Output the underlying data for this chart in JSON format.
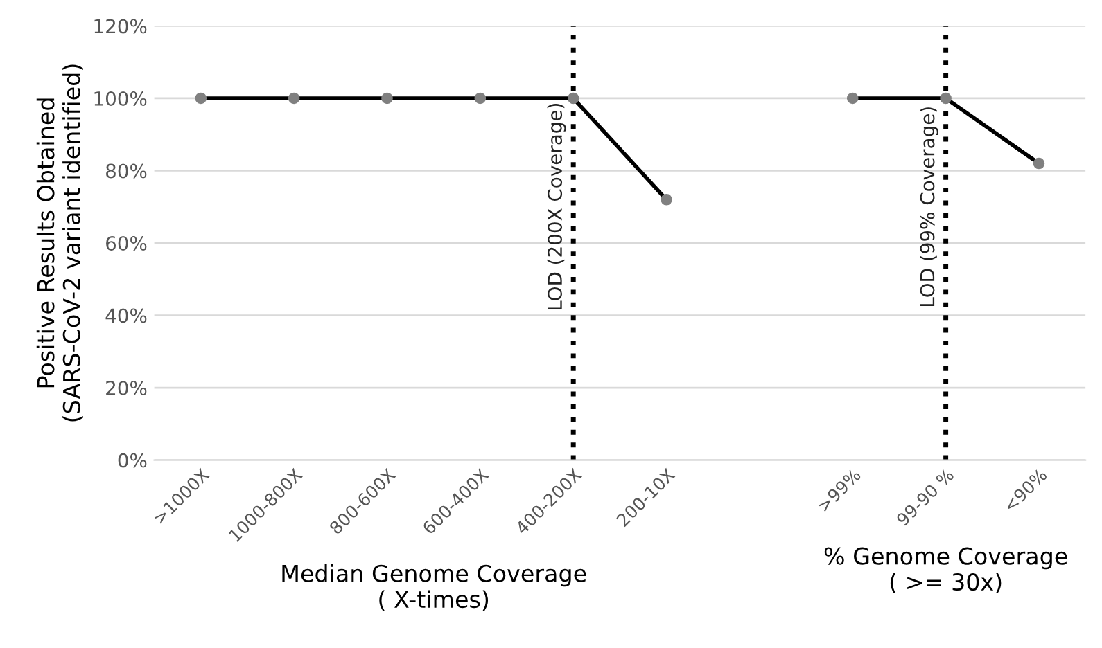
{
  "chart_data": {
    "type": "line",
    "xlabel": "Median Genome Coverage\n( X-times)",
    "ylabel": "Positive Results Obtained\n(SARS-CoV-2 variant identified)",
    "categories": [
      ">1000X",
      "1000-800X",
      "800-600X",
      "600-400X",
      "400-200X",
      "200-10X",
      null,
      ">99%",
      "99-90 %",
      "<90%"
    ],
    "series": [
      {
        "color": "#000000",
        "values": [
          100,
          100,
          100,
          100,
          100,
          72,
          null,
          100,
          100,
          82
        ]
      }
    ],
    "ylim": [
      0,
      120
    ],
    "yticks": [
      {
        "value": 0,
        "label": "0%"
      },
      {
        "value": 20,
        "label": "20%"
      },
      {
        "value": 40,
        "label": "40%"
      },
      {
        "value": 60,
        "label": "60%"
      },
      {
        "value": 80,
        "label": "80%"
      },
      {
        "value": 100,
        "label": "100%"
      },
      {
        "value": 120,
        "label": "120%"
      }
    ],
    "ref_lines": [
      {
        "axis": "x",
        "value": "400-200X",
        "label": "LOD (200X Coverage)",
        "color": "#000000",
        "line_style": "dotted"
      },
      {
        "axis": "x",
        "value": "99-90 %",
        "label": "LOD (99% Coverage)",
        "color": "#000000",
        "line_style": "dotted"
      }
    ],
    "annotations": [
      "% Genome Coverage\n( >= 30x)"
    ],
    "grid": "y",
    "marker": "circle",
    "line_style": "solid",
    "legend": false
  }
}
